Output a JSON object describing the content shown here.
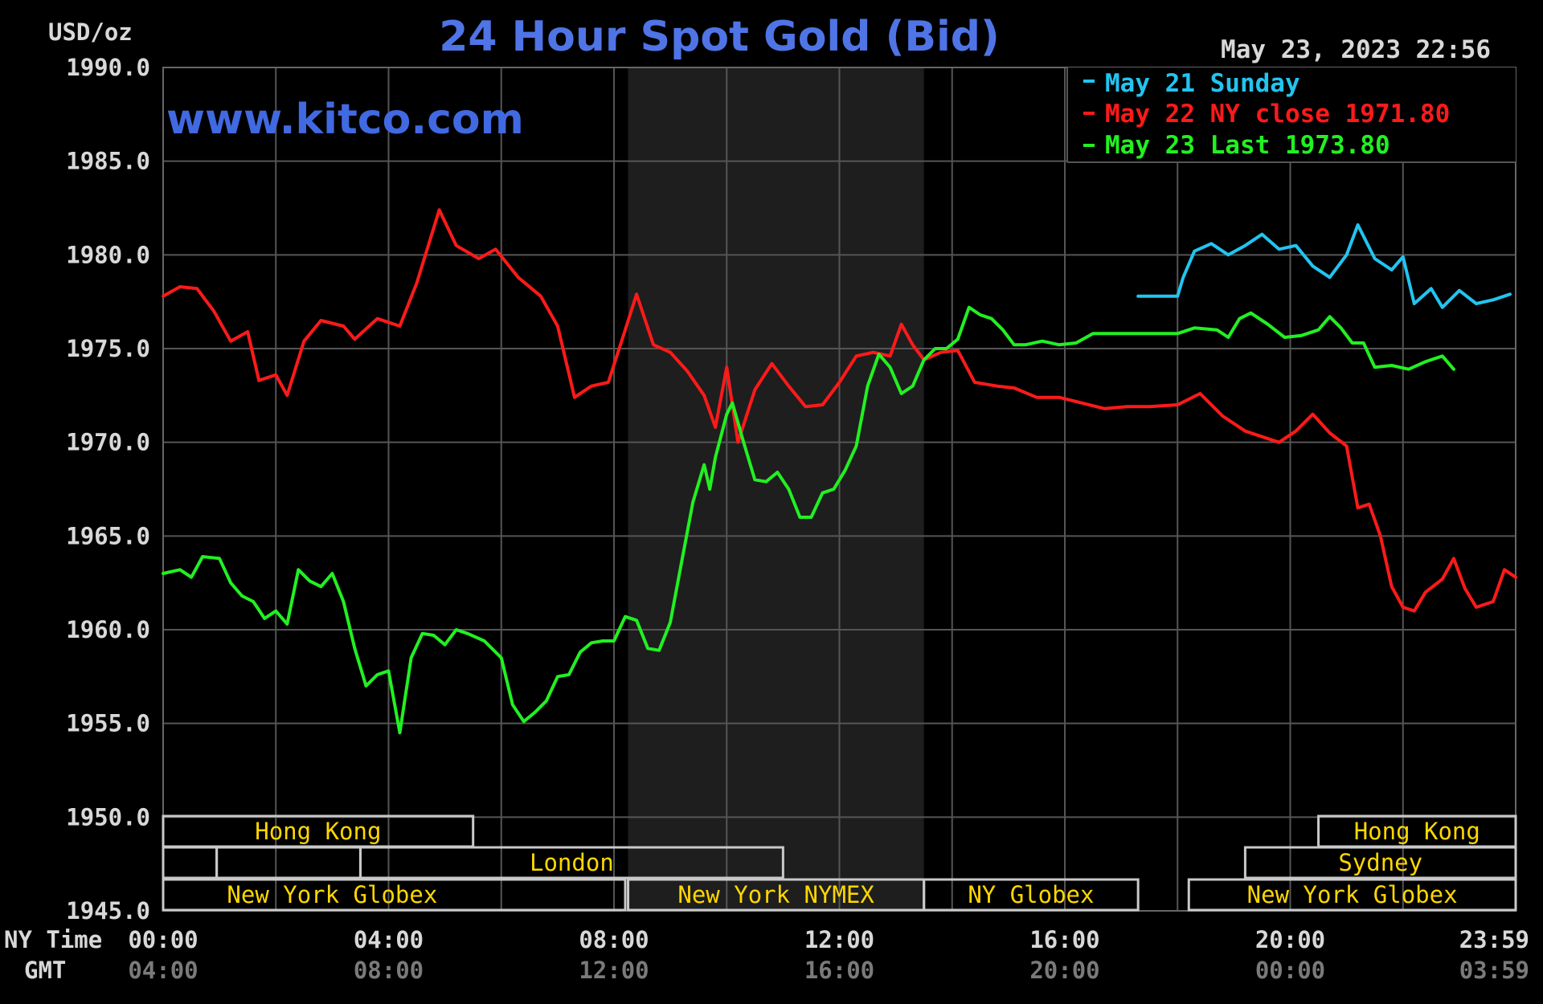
{
  "chart_data": {
    "type": "line",
    "title": "24 Hour Spot Gold (Bid)",
    "ylabel": "USD/oz",
    "website": "www.kitco.com",
    "timestamp": "May 23, 2023 22:56",
    "ylim": [
      1945,
      1990
    ],
    "y_ticks": [
      "1990.0",
      "1985.0",
      "1980.0",
      "1975.0",
      "1970.0",
      "1965.0",
      "1960.0",
      "1955.0",
      "1950.0",
      "1945.0"
    ],
    "x_axis": {
      "ny_label": "NY Time",
      "gmt_label": "GMT",
      "ny_ticks": [
        "00:00",
        "04:00",
        "08:00",
        "12:00",
        "16:00",
        "20:00",
        "23:59"
      ],
      "gmt_ticks": [
        "04:00",
        "08:00",
        "12:00",
        "16:00",
        "20:00",
        "00:00",
        "03:59"
      ],
      "range_hours": [
        0,
        24
      ]
    },
    "nymex_shade_hours": [
      8.25,
      13.5
    ],
    "series": [
      {
        "name": "May 21 Sunday",
        "color": "#22c4f0",
        "points": [
          [
            17.3,
            1977.8
          ],
          [
            18.0,
            1977.8
          ],
          [
            18.1,
            1978.8
          ],
          [
            18.3,
            1980.2
          ],
          [
            18.6,
            1980.6
          ],
          [
            18.9,
            1980.0
          ],
          [
            19.2,
            1980.5
          ],
          [
            19.5,
            1981.1
          ],
          [
            19.8,
            1980.3
          ],
          [
            20.1,
            1980.5
          ],
          [
            20.4,
            1979.4
          ],
          [
            20.7,
            1978.8
          ],
          [
            21.0,
            1980.0
          ],
          [
            21.2,
            1981.6
          ],
          [
            21.5,
            1979.8
          ],
          [
            21.8,
            1979.2
          ],
          [
            22.0,
            1979.9
          ],
          [
            22.2,
            1977.4
          ],
          [
            22.5,
            1978.2
          ],
          [
            22.7,
            1977.2
          ],
          [
            23.0,
            1978.1
          ],
          [
            23.3,
            1977.4
          ],
          [
            23.6,
            1977.6
          ],
          [
            23.9,
            1977.9
          ]
        ]
      },
      {
        "name": "May 22 NY close 1971.80",
        "color": "#ff1a1a",
        "points": [
          [
            0.0,
            1977.8
          ],
          [
            0.3,
            1978.3
          ],
          [
            0.6,
            1978.2
          ],
          [
            0.9,
            1977.0
          ],
          [
            1.2,
            1975.4
          ],
          [
            1.5,
            1975.9
          ],
          [
            1.7,
            1973.3
          ],
          [
            2.0,
            1973.6
          ],
          [
            2.2,
            1972.5
          ],
          [
            2.5,
            1975.4
          ],
          [
            2.8,
            1976.5
          ],
          [
            3.2,
            1976.2
          ],
          [
            3.4,
            1975.5
          ],
          [
            3.8,
            1976.6
          ],
          [
            4.2,
            1976.2
          ],
          [
            4.5,
            1978.5
          ],
          [
            4.9,
            1982.4
          ],
          [
            5.2,
            1980.5
          ],
          [
            5.6,
            1979.8
          ],
          [
            5.9,
            1980.3
          ],
          [
            6.3,
            1978.8
          ],
          [
            6.7,
            1977.8
          ],
          [
            7.0,
            1976.2
          ],
          [
            7.3,
            1972.4
          ],
          [
            7.6,
            1973.0
          ],
          [
            7.9,
            1973.2
          ],
          [
            8.2,
            1976.0
          ],
          [
            8.4,
            1977.9
          ],
          [
            8.7,
            1975.2
          ],
          [
            9.0,
            1974.8
          ],
          [
            9.3,
            1973.8
          ],
          [
            9.6,
            1972.5
          ],
          [
            9.8,
            1970.8
          ],
          [
            10.0,
            1974.0
          ],
          [
            10.2,
            1970.0
          ],
          [
            10.5,
            1972.8
          ],
          [
            10.8,
            1974.2
          ],
          [
            11.1,
            1973.0
          ],
          [
            11.4,
            1971.9
          ],
          [
            11.7,
            1972.0
          ],
          [
            12.0,
            1973.2
          ],
          [
            12.3,
            1974.6
          ],
          [
            12.6,
            1974.8
          ],
          [
            12.9,
            1974.6
          ],
          [
            13.1,
            1976.3
          ],
          [
            13.3,
            1975.2
          ],
          [
            13.5,
            1974.4
          ],
          [
            13.8,
            1974.8
          ],
          [
            14.1,
            1974.9
          ],
          [
            14.4,
            1973.2
          ],
          [
            14.8,
            1973.0
          ],
          [
            15.1,
            1972.9
          ],
          [
            15.5,
            1972.4
          ],
          [
            15.9,
            1972.4
          ],
          [
            16.3,
            1972.1
          ],
          [
            16.7,
            1971.8
          ],
          [
            17.1,
            1971.9
          ],
          [
            17.5,
            1971.9
          ],
          [
            18.0,
            1972.0
          ],
          [
            18.4,
            1972.6
          ],
          [
            18.8,
            1971.4
          ],
          [
            19.2,
            1970.6
          ],
          [
            19.5,
            1970.3
          ],
          [
            19.8,
            1970.0
          ],
          [
            20.1,
            1970.6
          ],
          [
            20.4,
            1971.5
          ],
          [
            20.7,
            1970.5
          ],
          [
            21.0,
            1969.8
          ],
          [
            21.2,
            1966.5
          ],
          [
            21.4,
            1966.7
          ],
          [
            21.6,
            1965.0
          ],
          [
            21.8,
            1962.3
          ],
          [
            22.0,
            1961.2
          ],
          [
            22.2,
            1961.0
          ],
          [
            22.4,
            1962.0
          ],
          [
            22.7,
            1962.7
          ],
          [
            22.9,
            1963.8
          ],
          [
            23.1,
            1962.2
          ],
          [
            23.3,
            1961.2
          ],
          [
            23.6,
            1961.5
          ],
          [
            23.8,
            1963.2
          ],
          [
            24.0,
            1962.8
          ]
        ]
      },
      {
        "name": "May 23 Last 1973.80",
        "color": "#22f022",
        "points": [
          [
            0.0,
            1963.0
          ],
          [
            0.3,
            1963.2
          ],
          [
            0.5,
            1962.8
          ],
          [
            0.7,
            1963.9
          ],
          [
            1.0,
            1963.8
          ],
          [
            1.2,
            1962.5
          ],
          [
            1.4,
            1961.8
          ],
          [
            1.6,
            1961.5
          ],
          [
            1.8,
            1960.6
          ],
          [
            2.0,
            1961.0
          ],
          [
            2.2,
            1960.3
          ],
          [
            2.4,
            1963.2
          ],
          [
            2.6,
            1962.6
          ],
          [
            2.8,
            1962.3
          ],
          [
            3.0,
            1963.0
          ],
          [
            3.2,
            1961.5
          ],
          [
            3.4,
            1959.0
          ],
          [
            3.6,
            1957.0
          ],
          [
            3.8,
            1957.6
          ],
          [
            4.0,
            1957.8
          ],
          [
            4.2,
            1954.5
          ],
          [
            4.4,
            1958.5
          ],
          [
            4.6,
            1959.8
          ],
          [
            4.8,
            1959.7
          ],
          [
            5.0,
            1959.2
          ],
          [
            5.2,
            1960.0
          ],
          [
            5.4,
            1959.8
          ],
          [
            5.7,
            1959.4
          ],
          [
            6.0,
            1958.5
          ],
          [
            6.2,
            1956.0
          ],
          [
            6.4,
            1955.1
          ],
          [
            6.6,
            1955.6
          ],
          [
            6.8,
            1956.2
          ],
          [
            7.0,
            1957.5
          ],
          [
            7.2,
            1957.6
          ],
          [
            7.4,
            1958.8
          ],
          [
            7.6,
            1959.3
          ],
          [
            7.8,
            1959.4
          ],
          [
            8.0,
            1959.4
          ],
          [
            8.2,
            1960.7
          ],
          [
            8.4,
            1960.5
          ],
          [
            8.6,
            1959.0
          ],
          [
            8.8,
            1958.9
          ],
          [
            9.0,
            1960.4
          ],
          [
            9.2,
            1963.6
          ],
          [
            9.4,
            1966.8
          ],
          [
            9.6,
            1968.8
          ],
          [
            9.7,
            1967.5
          ],
          [
            9.8,
            1969.2
          ],
          [
            10.0,
            1971.5
          ],
          [
            10.1,
            1972.1
          ],
          [
            10.3,
            1970.0
          ],
          [
            10.5,
            1968.0
          ],
          [
            10.7,
            1967.9
          ],
          [
            10.9,
            1968.4
          ],
          [
            11.1,
            1967.5
          ],
          [
            11.3,
            1966.0
          ],
          [
            11.5,
            1966.0
          ],
          [
            11.7,
            1967.3
          ],
          [
            11.9,
            1967.5
          ],
          [
            12.1,
            1968.5
          ],
          [
            12.3,
            1969.8
          ],
          [
            12.5,
            1973.0
          ],
          [
            12.7,
            1974.7
          ],
          [
            12.9,
            1974.0
          ],
          [
            13.1,
            1972.6
          ],
          [
            13.3,
            1973.0
          ],
          [
            13.5,
            1974.4
          ],
          [
            13.7,
            1975.0
          ],
          [
            13.9,
            1975.0
          ],
          [
            14.1,
            1975.5
          ],
          [
            14.3,
            1977.2
          ],
          [
            14.5,
            1976.8
          ],
          [
            14.7,
            1976.6
          ],
          [
            14.9,
            1976.0
          ],
          [
            15.1,
            1975.2
          ],
          [
            15.3,
            1975.2
          ],
          [
            15.6,
            1975.4
          ],
          [
            15.9,
            1975.2
          ],
          [
            16.2,
            1975.3
          ],
          [
            16.5,
            1975.8
          ],
          [
            16.9,
            1975.8
          ],
          [
            17.3,
            1975.8
          ],
          [
            17.7,
            1975.8
          ],
          [
            18.0,
            1975.8
          ],
          [
            18.3,
            1976.1
          ],
          [
            18.7,
            1976.0
          ],
          [
            18.9,
            1975.6
          ],
          [
            19.1,
            1976.6
          ],
          [
            19.3,
            1976.9
          ],
          [
            19.6,
            1976.3
          ],
          [
            19.9,
            1975.6
          ],
          [
            20.2,
            1975.7
          ],
          [
            20.5,
            1976.0
          ],
          [
            20.7,
            1976.7
          ],
          [
            20.9,
            1976.1
          ],
          [
            21.1,
            1975.3
          ],
          [
            21.3,
            1975.3
          ],
          [
            21.5,
            1974.0
          ],
          [
            21.8,
            1974.1
          ],
          [
            22.1,
            1973.9
          ],
          [
            22.4,
            1974.3
          ],
          [
            22.7,
            1974.6
          ],
          [
            22.9,
            1973.9
          ]
        ]
      }
    ],
    "sessions": [
      {
        "name": "Hong Kong",
        "row": 0,
        "start_h": 0.0,
        "end_h": 5.5,
        "label_end_h": 5.5
      },
      {
        "name": "Hong Kong",
        "row": 0,
        "start_h": 20.5,
        "end_h": 24.0,
        "label_end_h": 24.0
      },
      {
        "name": "",
        "row": 1,
        "start_h": 0.0,
        "end_h": 0.95,
        "label_end_h": 0.95
      },
      {
        "name": "",
        "row": 1,
        "start_h": 0.95,
        "end_h": 3.5,
        "label_end_h": 3.5
      },
      {
        "name": "London",
        "row": 1,
        "start_h": 3.5,
        "end_h": 11.0,
        "label_end_h": 11.0
      },
      {
        "name": "Sydney",
        "row": 1,
        "start_h": 19.2,
        "end_h": 24.0,
        "label_end_h": 24.0
      },
      {
        "name": "New York Globex",
        "row": 2,
        "start_h": 0.0,
        "end_h": 8.2,
        "label_end_h": 6.0
      },
      {
        "name": "New York NYMEX",
        "row": 2,
        "start_h": 8.25,
        "end_h": 13.5,
        "label_end_h": 13.5
      },
      {
        "name": "NY Globex",
        "row": 2,
        "start_h": 13.5,
        "end_h": 17.3,
        "label_end_h": 17.3
      },
      {
        "name": "New York Globex",
        "row": 2,
        "start_h": 18.2,
        "end_h": 24.0,
        "label_end_h": 24.0
      }
    ]
  }
}
